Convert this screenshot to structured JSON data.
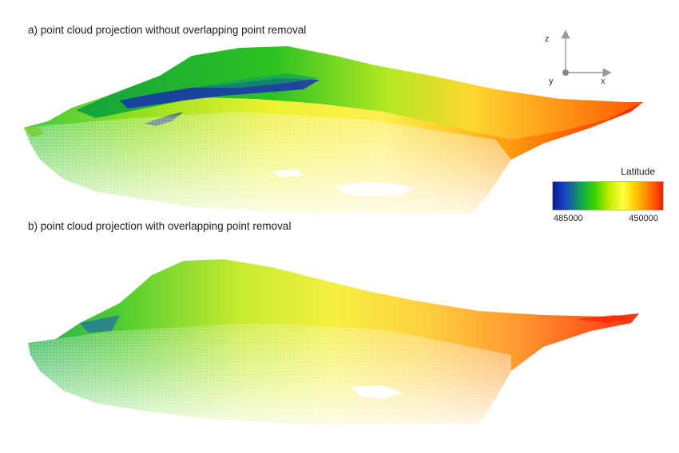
{
  "captions": {
    "a": "a) point cloud projection without overlapping point removal",
    "b": "b) point cloud projection with overlapping point removal"
  },
  "axes_indicator": {
    "z": "z",
    "y": "y",
    "x": "x"
  },
  "legend": {
    "title": "Latitude",
    "min_label": "485000",
    "max_label": "450000",
    "colormap": [
      "#0a1a8c",
      "#1540c8",
      "#12b040",
      "#3cd200",
      "#c8ee00",
      "#ffff40",
      "#ffd000",
      "#ff7d00",
      "#ff1a00"
    ]
  }
}
